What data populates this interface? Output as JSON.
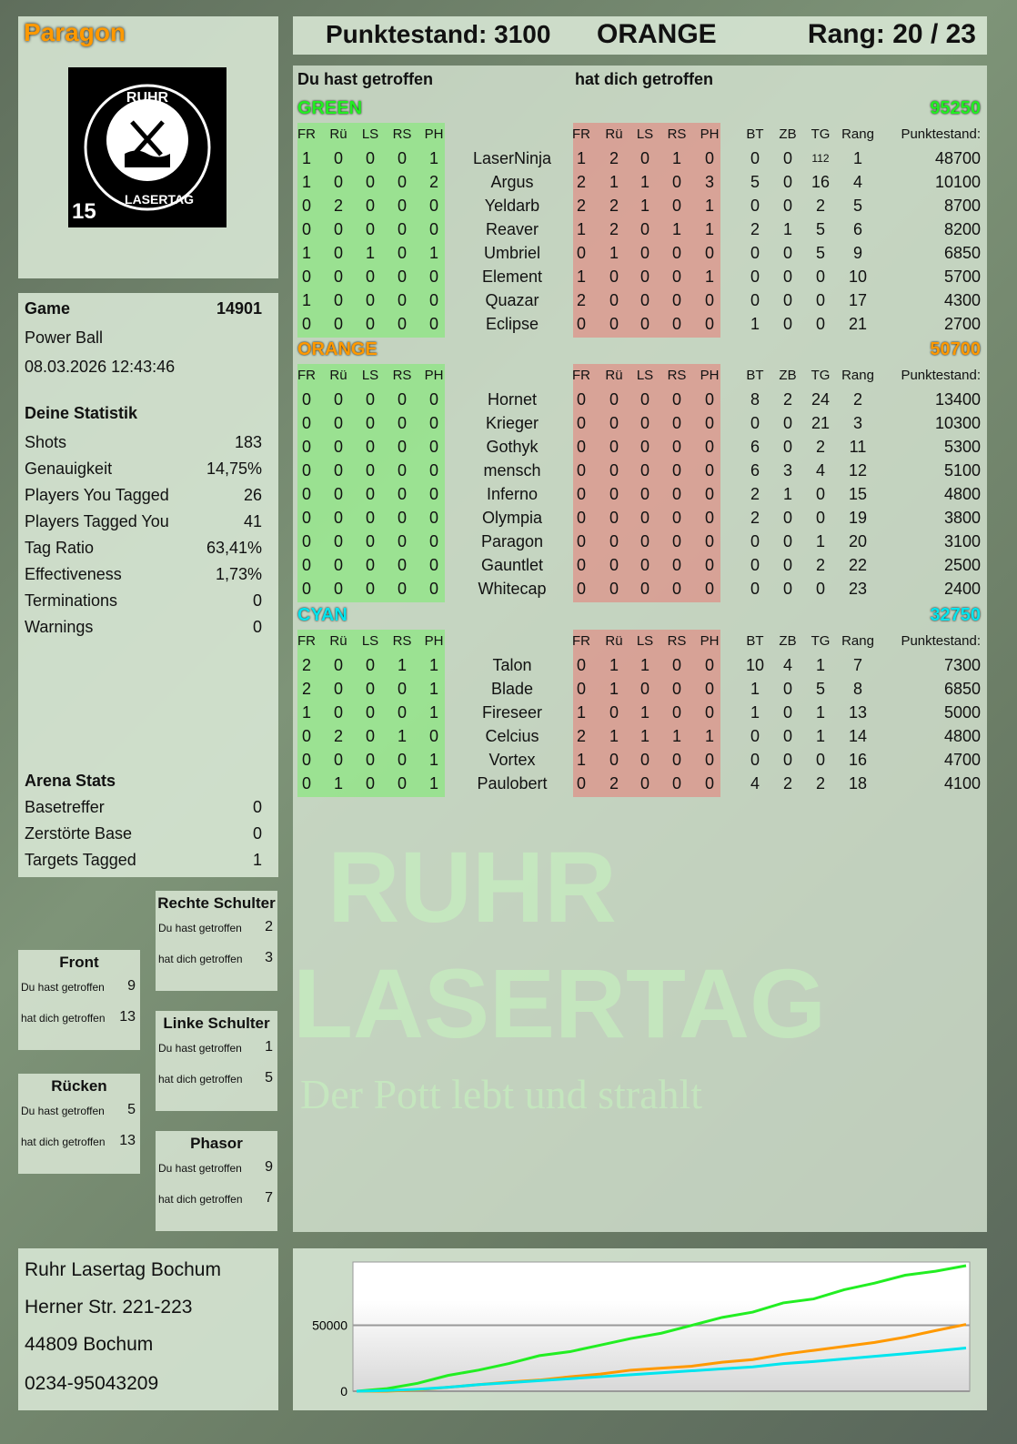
{
  "player": {
    "name": "Paragon",
    "logo_text": "RUHR LASERTAG",
    "logo_number": "15"
  },
  "header": {
    "score_label": "Punktestand: 3100",
    "team": "ORANGE",
    "rank_label": "Rang: 20 / 23"
  },
  "game": {
    "label": "Game",
    "id": "14901",
    "mode": "Power Ball",
    "datetime": "08.03.2026 12:43:46"
  },
  "stats": {
    "title": "Deine Statistik",
    "items": [
      {
        "label": "Shots",
        "value": "183"
      },
      {
        "label": "Genauigkeit",
        "value": "14,75%"
      },
      {
        "label": "Players You Tagged",
        "value": "26"
      },
      {
        "label": "Players Tagged You",
        "value": "41"
      },
      {
        "label": "Tag Ratio",
        "value": "63,41%"
      },
      {
        "label": "Effectiveness",
        "value": "1,73%"
      },
      {
        "label": "Terminations",
        "value": "0"
      },
      {
        "label": "Warnings",
        "value": "0"
      }
    ]
  },
  "arena": {
    "title": "Arena Stats",
    "items": [
      {
        "label": "Basetreffer",
        "value": "0"
      },
      {
        "label": "Zerstörte Base",
        "value": "0"
      },
      {
        "label": "Targets Tagged",
        "value": "1"
      }
    ]
  },
  "zones": [
    {
      "title": "Rechte Schulter",
      "hit_label": "Du hast getroffen",
      "hit": "2",
      "got_label": "hat dich getroffen",
      "got": "3"
    },
    {
      "title": "Front",
      "hit_label": "Du hast getroffen",
      "hit": "9",
      "got_label": "hat dich getroffen",
      "got": "13"
    },
    {
      "title": "Linke Schulter",
      "hit_label": "Du hast getroffen",
      "hit": "1",
      "got_label": "hat dich getroffen",
      "got": "5"
    },
    {
      "title": "Rücken",
      "hit_label": "Du hast getroffen",
      "hit": "5",
      "got_label": "hat dich getroffen",
      "got": "13"
    },
    {
      "title": "Phasor",
      "hit_label": "Du hast getroffen",
      "hit": "9",
      "got_label": "hat dich getroffen",
      "got": "7"
    }
  ],
  "address": [
    "Ruhr Lasertag Bochum",
    "Herner Str. 221-223",
    "44809 Bochum",
    "0234-95043209"
  ],
  "watermark": {
    "line1": "RUHR",
    "line2": "LASERTAG",
    "slogan": "Der Pott lebt und strahlt"
  },
  "table": {
    "you_hit_label": "Du hast getroffen",
    "hit_you_label": "hat dich getroffen",
    "columns_hit": [
      "FR",
      "Rü",
      "LS",
      "RS",
      "PH"
    ],
    "columns_stats": [
      "BT",
      "ZB",
      "TG",
      "Rang",
      "Punktestand:"
    ],
    "teams": [
      {
        "name": "GREEN",
        "score": "95250",
        "color": "#22ee22",
        "players": [
          {
            "name": "LaserNinja",
            "hit": [
              1,
              0,
              0,
              0,
              1
            ],
            "got": [
              1,
              2,
              0,
              1,
              0
            ],
            "stats": [
              0,
              0,
              112,
              1
            ],
            "score": "48700"
          },
          {
            "name": "Argus",
            "hit": [
              1,
              0,
              0,
              0,
              2
            ],
            "got": [
              2,
              1,
              1,
              0,
              3
            ],
            "stats": [
              5,
              0,
              16,
              4
            ],
            "score": "10100"
          },
          {
            "name": "Yeldarb",
            "hit": [
              0,
              2,
              0,
              0,
              0
            ],
            "got": [
              2,
              2,
              1,
              0,
              1
            ],
            "stats": [
              0,
              0,
              2,
              5
            ],
            "score": "8700"
          },
          {
            "name": "Reaver",
            "hit": [
              0,
              0,
              0,
              0,
              0
            ],
            "got": [
              1,
              2,
              0,
              1,
              1
            ],
            "stats": [
              2,
              1,
              5,
              6
            ],
            "score": "8200"
          },
          {
            "name": "Umbriel",
            "hit": [
              1,
              0,
              1,
              0,
              1
            ],
            "got": [
              0,
              1,
              0,
              0,
              0
            ],
            "stats": [
              0,
              0,
              5,
              9
            ],
            "score": "6850"
          },
          {
            "name": "Element",
            "hit": [
              0,
              0,
              0,
              0,
              0
            ],
            "got": [
              1,
              0,
              0,
              0,
              1
            ],
            "stats": [
              0,
              0,
              0,
              10
            ],
            "score": "5700"
          },
          {
            "name": "Quazar",
            "hit": [
              1,
              0,
              0,
              0,
              0
            ],
            "got": [
              2,
              0,
              0,
              0,
              0
            ],
            "stats": [
              0,
              0,
              0,
              17
            ],
            "score": "4300"
          },
          {
            "name": "Eclipse",
            "hit": [
              0,
              0,
              0,
              0,
              0
            ],
            "got": [
              0,
              0,
              0,
              0,
              0
            ],
            "stats": [
              1,
              0,
              0,
              21
            ],
            "score": "2700"
          }
        ]
      },
      {
        "name": "ORANGE",
        "score": "50700",
        "color": "#ff9900",
        "players": [
          {
            "name": "Hornet",
            "hit": [
              0,
              0,
              0,
              0,
              0
            ],
            "got": [
              0,
              0,
              0,
              0,
              0
            ],
            "stats": [
              8,
              2,
              24,
              2
            ],
            "score": "13400"
          },
          {
            "name": "Krieger",
            "hit": [
              0,
              0,
              0,
              0,
              0
            ],
            "got": [
              0,
              0,
              0,
              0,
              0
            ],
            "stats": [
              0,
              0,
              21,
              3
            ],
            "score": "10300"
          },
          {
            "name": "Gothyk",
            "hit": [
              0,
              0,
              0,
              0,
              0
            ],
            "got": [
              0,
              0,
              0,
              0,
              0
            ],
            "stats": [
              6,
              0,
              2,
              11
            ],
            "score": "5300"
          },
          {
            "name": "mensch",
            "hit": [
              0,
              0,
              0,
              0,
              0
            ],
            "got": [
              0,
              0,
              0,
              0,
              0
            ],
            "stats": [
              6,
              3,
              4,
              12
            ],
            "score": "5100"
          },
          {
            "name": "Inferno",
            "hit": [
              0,
              0,
              0,
              0,
              0
            ],
            "got": [
              0,
              0,
              0,
              0,
              0
            ],
            "stats": [
              2,
              1,
              0,
              15
            ],
            "score": "4800"
          },
          {
            "name": "Olympia",
            "hit": [
              0,
              0,
              0,
              0,
              0
            ],
            "got": [
              0,
              0,
              0,
              0,
              0
            ],
            "stats": [
              2,
              0,
              0,
              19
            ],
            "score": "3800"
          },
          {
            "name": "Paragon",
            "hit": [
              0,
              0,
              0,
              0,
              0
            ],
            "got": [
              0,
              0,
              0,
              0,
              0
            ],
            "stats": [
              0,
              0,
              1,
              20
            ],
            "score": "3100"
          },
          {
            "name": "Gauntlet",
            "hit": [
              0,
              0,
              0,
              0,
              0
            ],
            "got": [
              0,
              0,
              0,
              0,
              0
            ],
            "stats": [
              0,
              0,
              2,
              22
            ],
            "score": "2500"
          },
          {
            "name": "Whitecap",
            "hit": [
              0,
              0,
              0,
              0,
              0
            ],
            "got": [
              0,
              0,
              0,
              0,
              0
            ],
            "stats": [
              0,
              0,
              0,
              23
            ],
            "score": "2400"
          }
        ]
      },
      {
        "name": "CYAN",
        "score": "32750",
        "color": "#00e5ee",
        "players": [
          {
            "name": "Talon",
            "hit": [
              2,
              0,
              0,
              1,
              1
            ],
            "got": [
              0,
              1,
              1,
              0,
              0
            ],
            "stats": [
              10,
              4,
              1,
              7
            ],
            "score": "7300"
          },
          {
            "name": "Blade",
            "hit": [
              2,
              0,
              0,
              0,
              1
            ],
            "got": [
              0,
              1,
              0,
              0,
              0
            ],
            "stats": [
              1,
              0,
              5,
              8
            ],
            "score": "6850"
          },
          {
            "name": "Fireseer",
            "hit": [
              1,
              0,
              0,
              0,
              1
            ],
            "got": [
              1,
              0,
              1,
              0,
              0
            ],
            "stats": [
              1,
              0,
              1,
              13
            ],
            "score": "5000"
          },
          {
            "name": "Celcius",
            "hit": [
              0,
              2,
              0,
              1,
              0
            ],
            "got": [
              2,
              1,
              1,
              1,
              1
            ],
            "stats": [
              0,
              0,
              1,
              14
            ],
            "score": "4800"
          },
          {
            "name": "Vortex",
            "hit": [
              0,
              0,
              0,
              0,
              1
            ],
            "got": [
              1,
              0,
              0,
              0,
              0
            ],
            "stats": [
              0,
              0,
              0,
              16
            ],
            "score": "4700"
          },
          {
            "name": "Paulobert",
            "hit": [
              0,
              1,
              0,
              0,
              1
            ],
            "got": [
              0,
              2,
              0,
              0,
              0
            ],
            "stats": [
              4,
              2,
              2,
              18
            ],
            "score": "4100"
          }
        ]
      }
    ]
  },
  "chart_data": {
    "type": "line",
    "title": "",
    "xlabel": "",
    "ylabel": "",
    "ylim": [
      0,
      98000
    ],
    "yticks": [
      "0",
      "50000"
    ],
    "grid": "horizontal",
    "legend": "none",
    "x": [
      0,
      1,
      2,
      3,
      4,
      5,
      6,
      7,
      8,
      9,
      10,
      11,
      12,
      13,
      14,
      15,
      16,
      17,
      18,
      19,
      20
    ],
    "series": [
      {
        "color": "#22ee22",
        "values": [
          0,
          2000,
          6000,
          12000,
          16000,
          21000,
          27000,
          30000,
          35000,
          40000,
          44000,
          50000,
          56000,
          60000,
          67000,
          70000,
          77000,
          82000,
          88000,
          91000,
          95250
        ]
      },
      {
        "color": "#ff9900",
        "values": [
          0,
          0,
          1000,
          3000,
          5000,
          7000,
          8500,
          11000,
          13000,
          16000,
          17500,
          19000,
          22000,
          24000,
          28000,
          31000,
          34000,
          37000,
          41000,
          46000,
          50700
        ]
      },
      {
        "color": "#00e5ee",
        "values": [
          0,
          500,
          1500,
          3000,
          5000,
          6500,
          8000,
          9500,
          11000,
          12500,
          14000,
          15500,
          17000,
          18500,
          21000,
          22500,
          24500,
          26500,
          28500,
          30500,
          32750
        ]
      }
    ]
  }
}
